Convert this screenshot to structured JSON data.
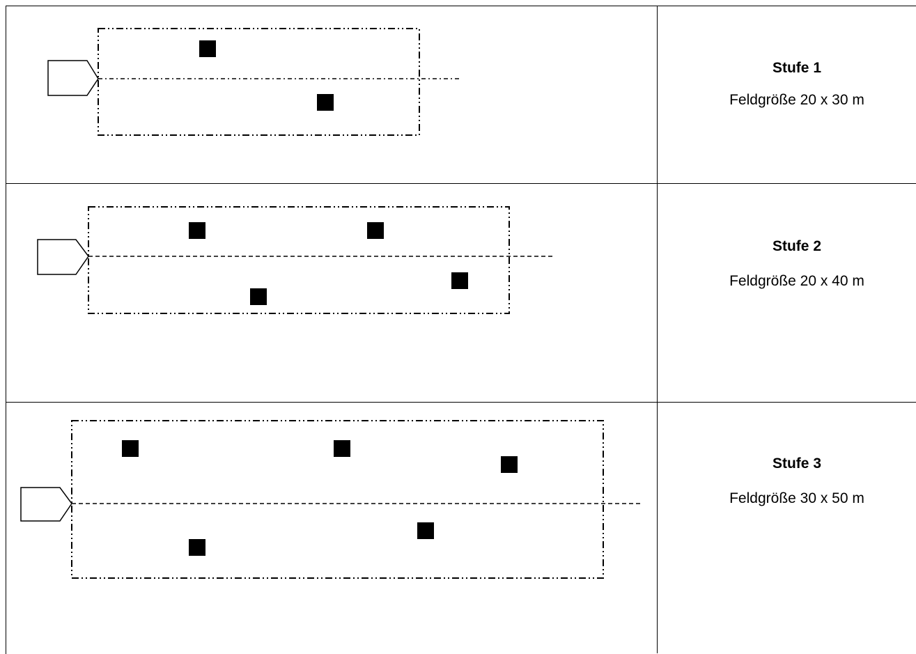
{
  "levels": [
    {
      "title": "Stufe 1",
      "size": "Feldgröße 20 x 30 m"
    },
    {
      "title": "Stufe 2",
      "size": "Feldgröße 20 x 40 m"
    },
    {
      "title": "Stufe 3",
      "size": "Feldgröße 30 x 50 m"
    }
  ]
}
